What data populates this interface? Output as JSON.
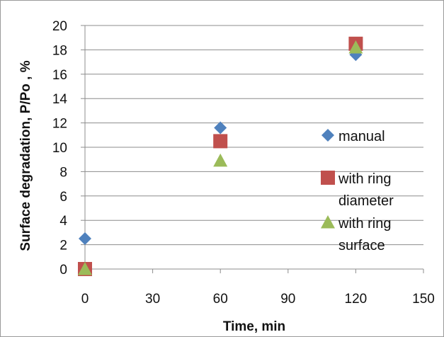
{
  "chart_data": {
    "type": "scatter",
    "title": "",
    "xlabel": "Time, min",
    "ylabel": "Surface degradation, P/Po , %",
    "xlim": [
      0,
      150
    ],
    "ylim": [
      0,
      20
    ],
    "xticks": [
      0,
      30,
      60,
      90,
      120,
      150
    ],
    "yticks": [
      0,
      2,
      4,
      6,
      8,
      10,
      12,
      14,
      16,
      18,
      20
    ],
    "grid": "horizontal",
    "legend_position": "right",
    "series": [
      {
        "name": "manual",
        "marker": "diamond",
        "color": "#4F81BD",
        "points": [
          {
            "x": 0,
            "y": 2.5
          },
          {
            "x": 60,
            "y": 11.6
          },
          {
            "x": 120,
            "y": 17.6
          }
        ]
      },
      {
        "name": "with ring diameter",
        "legend_lines": [
          "with ring",
          "diameter"
        ],
        "marker": "square",
        "color": "#C0504D",
        "points": [
          {
            "x": 0,
            "y": 0
          },
          {
            "x": 60,
            "y": 10.5
          },
          {
            "x": 120,
            "y": 18.5
          }
        ]
      },
      {
        "name": "with ring surface",
        "legend_lines": [
          "with ring",
          "surface"
        ],
        "marker": "triangle",
        "color": "#9BBB59",
        "points": [
          {
            "x": 0,
            "y": 0
          },
          {
            "x": 60,
            "y": 8.9
          },
          {
            "x": 120,
            "y": 18.2
          }
        ]
      }
    ]
  }
}
